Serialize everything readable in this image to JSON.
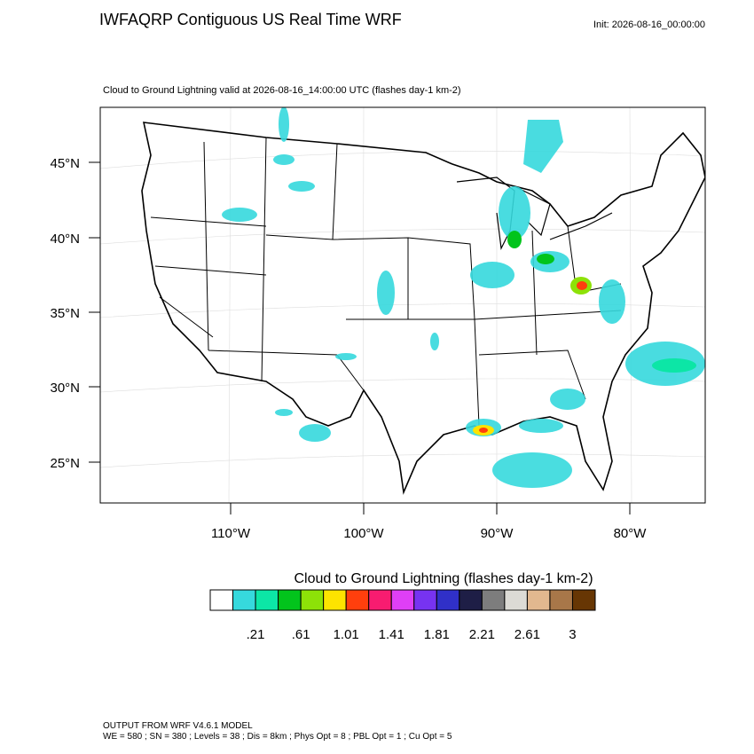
{
  "header": {
    "title": "IWFAQRP Contiguous US Real Time WRF",
    "init": "Init: 2026-08-16_00:00:00",
    "subtitle": "Cloud to Ground Lightning valid at 2026-08-16_14:00:00 UTC   (flashes day-1 km-2)"
  },
  "map": {
    "lat_labels": [
      "45°N",
      "40°N",
      "35°N",
      "30°N",
      "25°N"
    ],
    "lon_labels": [
      "110°W",
      "100°W",
      "90°W",
      "80°W"
    ]
  },
  "colorbar": {
    "title": "Cloud to Ground Lightning  (flashes day-1 km-2)",
    "colors": [
      "#ffffff",
      "#36d9dd",
      "#0ce6a6",
      "#02c41c",
      "#8de208",
      "#fde300",
      "#ff3f0d",
      "#f81c70",
      "#df3ff6",
      "#7733f1",
      "#3030c8",
      "#1e1e46",
      "#7d7d7d",
      "#dcdbd5",
      "#e2b88f",
      "#a87749",
      "#673604"
    ],
    "labels": [
      ".21",
      ".61",
      "1.01",
      "1.41",
      "1.81",
      "2.21",
      "2.61",
      "3"
    ]
  },
  "footer": {
    "line1": "OUTPUT FROM WRF V4.6.1 MODEL",
    "line2": "WE = 580 ; SN = 380 ; Levels = 38 ; Dis = 8km ; Phys Opt = 8 ; PBL Opt = 1 ; Cu Opt = 5"
  }
}
